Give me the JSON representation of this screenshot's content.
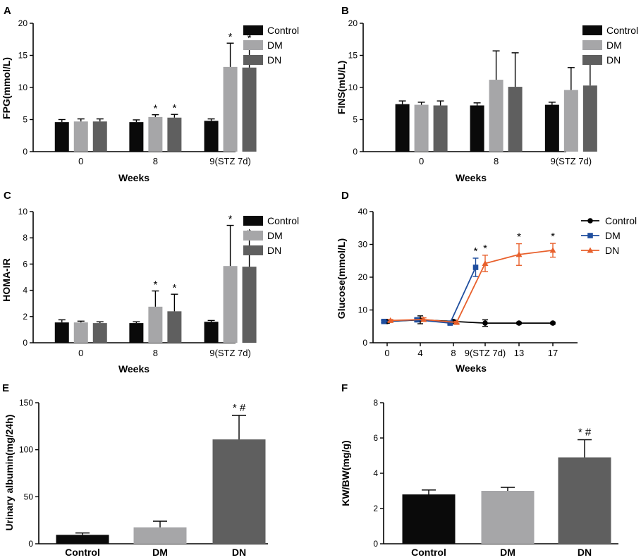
{
  "colors": {
    "Control": "#0a0a0a",
    "DM": "#a6a6a8",
    "DN": "#5f5f5f",
    "line_control": "#000000",
    "line_dm": "#1f4e9e",
    "line_dn": "#e8602c"
  },
  "chart_data": [
    {
      "id": "A",
      "type": "bar",
      "panel_label": "A",
      "categories": [
        "0",
        "8",
        "9(STZ 7d)"
      ],
      "series": [
        {
          "name": "Control",
          "values": [
            4.6,
            4.6,
            4.8
          ],
          "errors": [
            0.4,
            0.35,
            0.3
          ]
        },
        {
          "name": "DM",
          "values": [
            4.7,
            5.4,
            13.2
          ],
          "errors": [
            0.4,
            0.35,
            3.7
          ]
        },
        {
          "name": "DN",
          "values": [
            4.7,
            5.3,
            13.1
          ],
          "errors": [
            0.4,
            0.5,
            3.6
          ]
        }
      ],
      "annotations": [
        {
          "category": 1,
          "series": 1,
          "text": "*"
        },
        {
          "category": 1,
          "series": 2,
          "text": "*"
        },
        {
          "category": 2,
          "series": 1,
          "text": "*"
        },
        {
          "category": 2,
          "series": 2,
          "text": "*"
        }
      ],
      "xlabel": "Weeks",
      "ylabel": "FPG(mmol/L)",
      "ylim": [
        0,
        20
      ],
      "yticks": [
        0,
        5,
        10,
        15,
        20
      ],
      "legend": [
        "Control",
        "DM",
        "DN"
      ],
      "legend_position": "right"
    },
    {
      "id": "B",
      "type": "bar",
      "panel_label": "B",
      "categories": [
        "0",
        "8",
        "9(STZ 7d)"
      ],
      "series": [
        {
          "name": "Control",
          "values": [
            7.4,
            7.2,
            7.3
          ],
          "errors": [
            0.5,
            0.4,
            0.4
          ]
        },
        {
          "name": "DM",
          "values": [
            7.3,
            11.2,
            9.6
          ],
          "errors": [
            0.4,
            4.5,
            3.5
          ]
        },
        {
          "name": "DN",
          "values": [
            7.2,
            10.1,
            10.3
          ],
          "errors": [
            0.7,
            5.3,
            3.9
          ]
        }
      ],
      "annotations": [],
      "xlabel": "Weeks",
      "ylabel": "FINS(mU/L)",
      "ylim": [
        0,
        20
      ],
      "yticks": [
        0,
        5,
        10,
        15,
        20
      ],
      "legend": [
        "Control",
        "DM",
        "DN"
      ],
      "legend_position": "right"
    },
    {
      "id": "C",
      "type": "bar",
      "panel_label": "C",
      "categories": [
        "0",
        "8",
        "9(STZ 7d)"
      ],
      "series": [
        {
          "name": "Control",
          "values": [
            1.55,
            1.5,
            1.6
          ],
          "errors": [
            0.2,
            0.1,
            0.1
          ]
        },
        {
          "name": "DM",
          "values": [
            1.55,
            2.75,
            5.85
          ],
          "errors": [
            0.1,
            1.2,
            3.1
          ]
        },
        {
          "name": "DN",
          "values": [
            1.5,
            2.4,
            5.8
          ],
          "errors": [
            0.1,
            1.3,
            2.1
          ]
        }
      ],
      "annotations": [
        {
          "category": 1,
          "series": 1,
          "text": "*"
        },
        {
          "category": 1,
          "series": 2,
          "text": "*"
        },
        {
          "category": 2,
          "series": 1,
          "text": "*"
        },
        {
          "category": 2,
          "series": 2,
          "text": "*"
        }
      ],
      "xlabel": "Weeks",
      "ylabel": "HOMA-IR",
      "ylim": [
        0,
        10
      ],
      "yticks": [
        0,
        2,
        4,
        6,
        8,
        10
      ],
      "legend": [
        "Control",
        "DM",
        "DN"
      ],
      "legend_position": "right"
    },
    {
      "id": "D",
      "type": "line",
      "panel_label": "D",
      "categories": [
        "0",
        "4",
        "8",
        "9(STZ 7d)",
        "13",
        "17"
      ],
      "series": [
        {
          "name": "Control",
          "marker": "circle",
          "points": [
            [
              0,
              6.5,
              0.5
            ],
            [
              1,
              7.0,
              1.2
            ],
            [
              2,
              6.5,
              0.4
            ],
            [
              3,
              6.0,
              1.0
            ],
            [
              4,
              6.0,
              0.3
            ],
            [
              5,
              6.0,
              0.3
            ]
          ]
        },
        {
          "name": "DM",
          "marker": "square",
          "points": [
            [
              -0.1,
              6.5,
              0.3
            ],
            [
              0.9,
              7.0,
              0.5
            ],
            [
              1.9,
              6.0,
              0.3
            ],
            [
              2.7,
              23.0,
              2.8
            ]
          ]
        },
        {
          "name": "DN",
          "marker": "triangle",
          "points": [
            [
              0.1,
              6.8,
              0.3
            ],
            [
              1.1,
              7.1,
              0.5
            ],
            [
              2.1,
              6.2,
              0.3
            ],
            [
              3.0,
              24.2,
              2.5
            ],
            [
              4.0,
              26.9,
              3.3
            ],
            [
              5.0,
              28.2,
              2.1
            ]
          ]
        }
      ],
      "annotations": [
        {
          "series": 1,
          "point": 3,
          "text": "*"
        },
        {
          "series": 2,
          "point": 3,
          "text": "*"
        },
        {
          "series": 2,
          "point": 4,
          "text": "*"
        },
        {
          "series": 2,
          "point": 5,
          "text": "*"
        }
      ],
      "xlabel": "Weeks",
      "ylabel": "Glucose(mmol/L)",
      "ylim": [
        0,
        40
      ],
      "yticks": [
        0,
        10,
        20,
        30,
        40
      ],
      "legend": [
        "Control",
        "DM",
        "DN"
      ],
      "legend_position": "right"
    },
    {
      "id": "E",
      "type": "bar",
      "panel_label": "E",
      "categories": [
        "Control",
        "DM",
        "DN"
      ],
      "values": [
        9.5,
        17.5,
        111
      ],
      "errors": [
        2.0,
        6.5,
        25.5
      ],
      "annotations": [
        {
          "index": 2,
          "text": "* #"
        }
      ],
      "xlabel": "",
      "ylabel": "Urinary albumin(mg/24h)",
      "ylim": [
        0,
        150
      ],
      "yticks": [
        0,
        50,
        100,
        150
      ]
    },
    {
      "id": "F",
      "type": "bar",
      "panel_label": "F",
      "categories": [
        "Control",
        "DM",
        "DN"
      ],
      "values": [
        2.8,
        3.0,
        4.9
      ],
      "errors": [
        0.25,
        0.2,
        1.0
      ],
      "annotations": [
        {
          "index": 2,
          "text": "* #"
        }
      ],
      "xlabel": "",
      "ylabel": "KW/BW(mg/g)",
      "ylim": [
        0,
        8
      ],
      "yticks": [
        0,
        2,
        4,
        6,
        8
      ]
    }
  ]
}
